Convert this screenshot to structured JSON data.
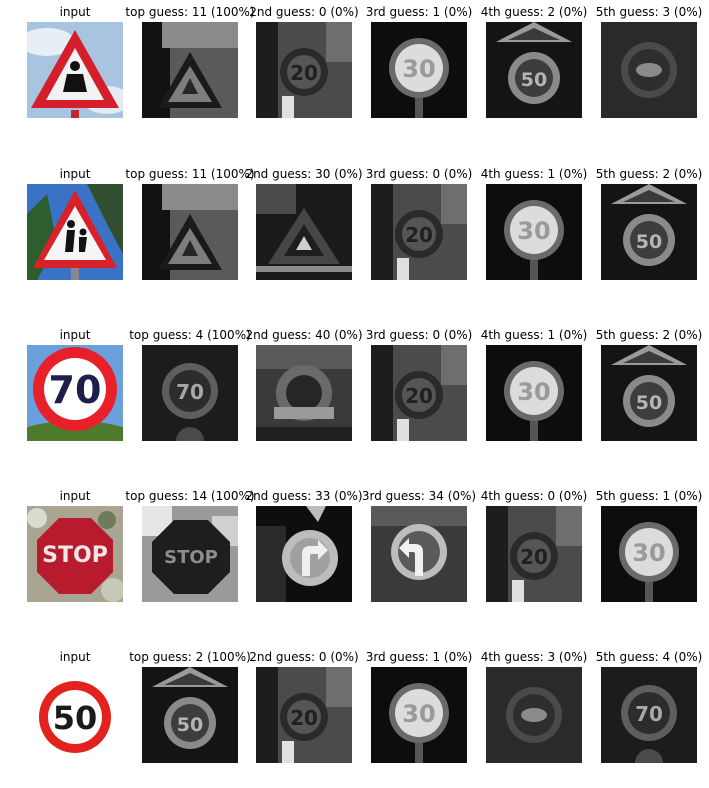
{
  "rows": [
    {
      "input": {
        "title": "input",
        "sign": "warning-pedestrian"
      },
      "guesses": [
        {
          "title": "top guess: 11 (100%)",
          "sign": "warning"
        },
        {
          "title": "2nd guess: 0 (0%)",
          "sign": "speed-20"
        },
        {
          "title": "3rd guess: 1 (0%)",
          "sign": "speed-30"
        },
        {
          "title": "4th guess: 2 (0%)",
          "sign": "speed-50"
        },
        {
          "title": "5th guess: 3 (0%)",
          "sign": "speed-60"
        }
      ]
    },
    {
      "input": {
        "title": "input",
        "sign": "warning-children"
      },
      "guesses": [
        {
          "title": "top guess: 11 (100%)",
          "sign": "warning"
        },
        {
          "title": "2nd guess: 30 (0%)",
          "sign": "warning-small"
        },
        {
          "title": "3rd guess: 0 (0%)",
          "sign": "speed-20"
        },
        {
          "title": "4th guess: 1 (0%)",
          "sign": "speed-30"
        },
        {
          "title": "5th guess: 2 (0%)",
          "sign": "speed-50"
        }
      ]
    },
    {
      "input": {
        "title": "input",
        "sign": "speed-70-photo"
      },
      "guesses": [
        {
          "title": "top guess: 4 (100%)",
          "sign": "speed-70"
        },
        {
          "title": "2nd guess: 40 (0%)",
          "sign": "roundabout"
        },
        {
          "title": "3rd guess: 0 (0%)",
          "sign": "speed-20"
        },
        {
          "title": "4th guess: 1 (0%)",
          "sign": "speed-30"
        },
        {
          "title": "5th guess: 2 (0%)",
          "sign": "speed-50"
        }
      ]
    },
    {
      "input": {
        "title": "input",
        "sign": "stop-photo"
      },
      "guesses": [
        {
          "title": "top guess: 14 (100%)",
          "sign": "stop"
        },
        {
          "title": "2nd guess: 33 (0%)",
          "sign": "turn-right"
        },
        {
          "title": "3rd guess: 34 (0%)",
          "sign": "turn-left"
        },
        {
          "title": "4th guess: 0 (0%)",
          "sign": "speed-20"
        },
        {
          "title": "5th guess: 1 (0%)",
          "sign": "speed-30"
        }
      ]
    },
    {
      "input": {
        "title": "input",
        "sign": "speed-50-clean"
      },
      "guesses": [
        {
          "title": "top guess: 2 (100%)",
          "sign": "speed-50"
        },
        {
          "title": "2nd guess: 0 (0%)",
          "sign": "speed-20"
        },
        {
          "title": "3rd guess: 1 (0%)",
          "sign": "speed-30"
        },
        {
          "title": "4th guess: 3 (0%)",
          "sign": "speed-60"
        },
        {
          "title": "5th guess: 4 (0%)",
          "sign": "speed-70"
        }
      ]
    }
  ]
}
